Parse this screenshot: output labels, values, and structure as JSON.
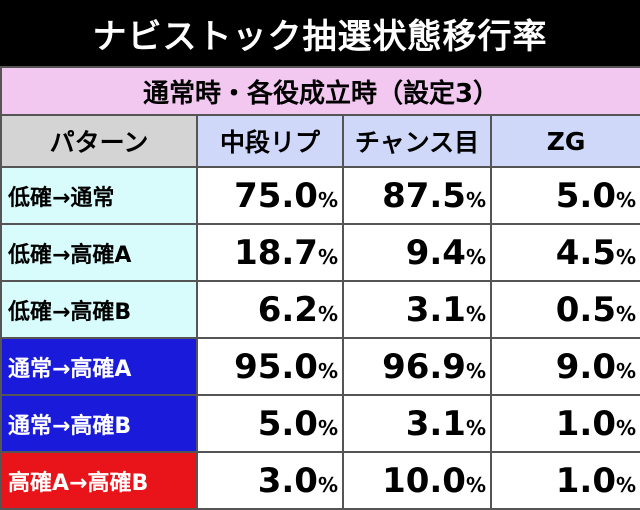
{
  "title": "ナビストック抽選状態移行率",
  "subtitle": "通常時・各役成立時（設定3）",
  "header": {
    "pattern": "パターン",
    "columns": [
      "中段リプ",
      "チャンス目",
      "ZG"
    ]
  },
  "rows": [
    {
      "label": "低確→通常",
      "values": [
        "75.0",
        "87.5",
        "5.0"
      ]
    },
    {
      "label": "低確→高確A",
      "values": [
        "18.7",
        "9.4",
        "4.5"
      ]
    },
    {
      "label": "低確→高確B",
      "values": [
        "6.2",
        "3.1",
        "0.5"
      ]
    },
    {
      "label": "通常→高確A",
      "values": [
        "95.0",
        "96.9",
        "9.0"
      ]
    },
    {
      "label": "通常→高確B",
      "values": [
        "5.0",
        "3.1",
        "1.0"
      ]
    },
    {
      "label": "高確A→高確B",
      "values": [
        "3.0",
        "10.0",
        "1.0"
      ]
    }
  ],
  "percent_sign": "%",
  "colors": {
    "subtitle_bg": "#f2c8f0",
    "pattern_header_bg": "#d4d4d4",
    "column_header_bg": "#cfd8f8",
    "label_cyan": "#d8fcfc",
    "label_blue": "#1a1adb",
    "label_red": "#e8141a"
  }
}
